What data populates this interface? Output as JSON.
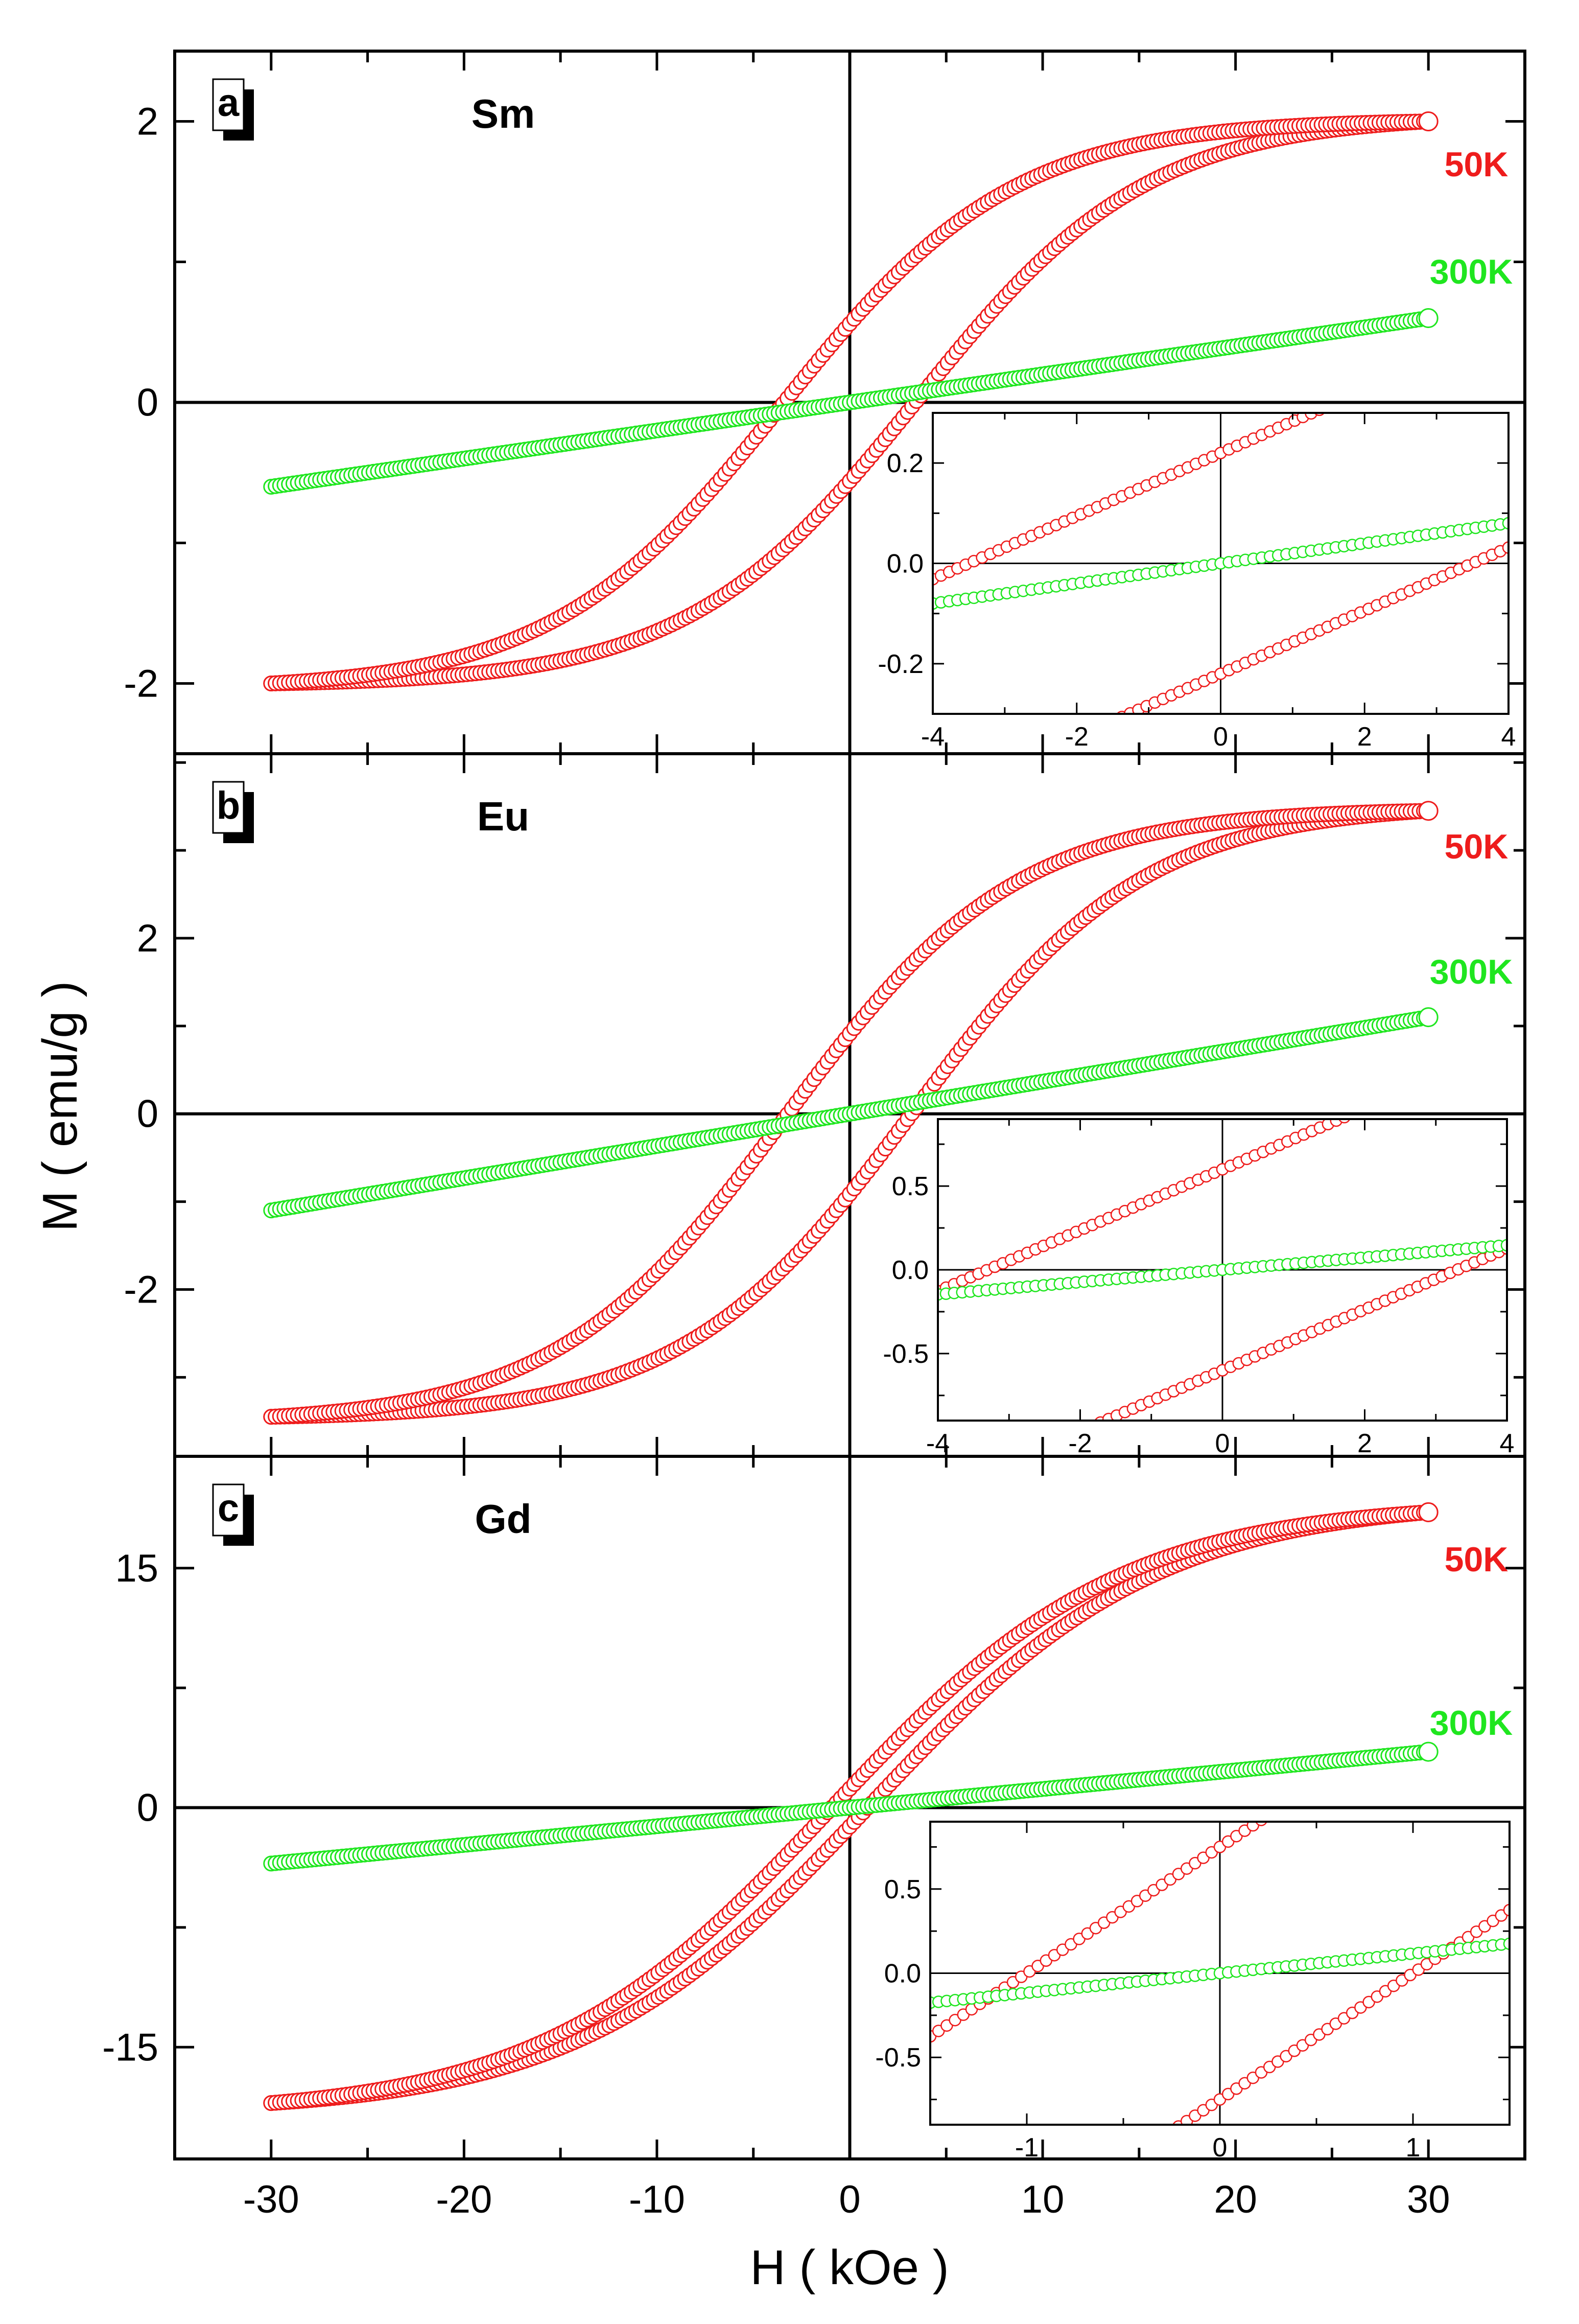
{
  "chart_data": {
    "type": "scatter",
    "xlabel": "H ( kOe )",
    "ylabel": "M ( emu/g )",
    "xlim": [
      -35,
      35
    ],
    "xticks": [
      -30,
      -20,
      -10,
      0,
      10,
      20,
      30
    ],
    "colors": {
      "50K": "#ee1c1c",
      "300K": "#1fe61f",
      "axis": "#000000"
    },
    "panels": [
      {
        "letter": "a",
        "element": "Sm",
        "ylim": [
          -2.5,
          2.5
        ],
        "yticks": [
          -2,
          0,
          2
        ],
        "series": [
          {
            "name": "50K",
            "type": "hysteresis",
            "Hmax": 30,
            "Mmax": 2.0,
            "Mr": 0.22,
            "Hc": 3.5,
            "sat_width": 12
          },
          {
            "name": "300K",
            "type": "linear",
            "Hmax": 30,
            "Mmax": 0.6
          }
        ],
        "inset": {
          "xlim": [
            -4,
            4
          ],
          "ylim": [
            -0.3,
            0.3
          ],
          "xticks": [
            -4,
            -2,
            0,
            2,
            4
          ],
          "yticks": [
            -0.2,
            0.0,
            0.2
          ],
          "ytick_labels": [
            "-0.2",
            "0.0",
            "0.2"
          ]
        }
      },
      {
        "letter": "b",
        "element": "Eu",
        "ylim": [
          -3.9,
          4.1
        ],
        "yticks": [
          -2,
          0,
          2
        ],
        "series": [
          {
            "name": "50K",
            "type": "hysteresis",
            "Hmax": 30,
            "Mmax": 3.45,
            "Mr": 0.6,
            "Hc": 3.3,
            "sat_width": 12
          },
          {
            "name": "300K",
            "type": "linear",
            "Hmax": 30,
            "Mmax": 1.1
          }
        ],
        "inset": {
          "xlim": [
            -4,
            4
          ],
          "ylim": [
            -0.9,
            0.9
          ],
          "xticks": [
            -4,
            -2,
            0,
            2,
            4
          ],
          "yticks": [
            -0.5,
            0.0,
            0.5
          ],
          "ytick_labels": [
            "-0.5",
            "0.0",
            "0.5"
          ]
        }
      },
      {
        "letter": "c",
        "element": "Gd",
        "ylim": [
          -22,
          22
        ],
        "yticks": [
          -15,
          0,
          15
        ],
        "series": [
          {
            "name": "50K",
            "type": "hysteresis",
            "Hmax": 30,
            "Mmax": 18.5,
            "Mr": 0.75,
            "Hc": 1.0,
            "sat_width": 15
          },
          {
            "name": "300K",
            "type": "linear",
            "Hmax": 30,
            "Mmax": 3.5
          }
        ],
        "inset": {
          "xlim": [
            -1.5,
            1.5
          ],
          "ylim": [
            -0.9,
            0.9
          ],
          "xticks": [
            -1,
            0,
            1
          ],
          "yticks": [
            -0.5,
            0.0,
            0.5
          ],
          "ytick_labels": [
            "-0.5",
            "0.0",
            "0.5"
          ]
        }
      }
    ]
  }
}
